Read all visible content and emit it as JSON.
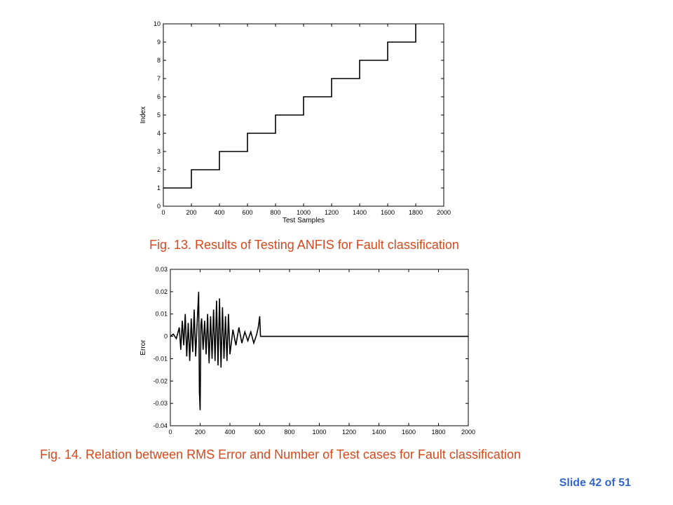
{
  "slide": {
    "label": "Slide 42 of 51"
  },
  "captions": {
    "fig13": "Fig. 13. Results of Testing ANFIS for Fault classification",
    "fig14": "Fig. 14. Relation between RMS Error and Number of Test cases for Fault classification"
  },
  "chart_data": [
    {
      "type": "line",
      "xlabel": "Test Samples",
      "ylabel": "Index",
      "xlim": [
        0,
        2000
      ],
      "ylim": [
        0,
        10
      ],
      "xticks": [
        0,
        200,
        400,
        600,
        800,
        1000,
        1200,
        1400,
        1600,
        1800,
        2000
      ],
      "yticks": [
        0,
        1,
        2,
        3,
        4,
        5,
        6,
        7,
        8,
        9,
        10
      ],
      "grid": false,
      "series": [
        {
          "x": [
            0,
            200,
            200,
            400,
            400,
            600,
            600,
            800,
            800,
            1000,
            1000,
            1200,
            1200,
            1400,
            1400,
            1600,
            1600,
            1800,
            1800
          ],
          "y": [
            1,
            1,
            2,
            2,
            3,
            3,
            4,
            4,
            5,
            5,
            6,
            6,
            7,
            7,
            8,
            8,
            9,
            9,
            10
          ]
        }
      ]
    },
    {
      "type": "line",
      "xlabel": "Test Samples",
      "ylabel": "Error",
      "xlim": [
        0,
        2000
      ],
      "ylim": [
        -0.04,
        0.03
      ],
      "xticks": [
        0,
        200,
        400,
        600,
        800,
        1000,
        1200,
        1400,
        1600,
        1800,
        2000
      ],
      "yticks": [
        0.03,
        0.02,
        0.01,
        0,
        -0.01,
        -0.02,
        -0.03,
        -0.04
      ],
      "ytick_labels": [
        "0.03",
        "0.02",
        "0.01",
        "0",
        "-0.01",
        "-0.02",
        "-0.03",
        "-0.04"
      ],
      "grid": false,
      "series": [
        {
          "x": [
            0,
            20,
            40,
            60,
            70,
            80,
            90,
            100,
            110,
            120,
            130,
            140,
            150,
            160,
            170,
            180,
            190,
            195,
            200,
            205,
            210,
            220,
            230,
            240,
            250,
            260,
            270,
            280,
            290,
            300,
            310,
            320,
            330,
            340,
            350,
            360,
            370,
            380,
            390,
            400,
            420,
            440,
            460,
            480,
            500,
            520,
            540,
            560,
            580,
            590,
            600,
            605,
            620,
            800,
            1000,
            1200,
            1400,
            1600,
            1800,
            2000
          ],
          "y": [
            0,
            0.001,
            -0.001,
            0.004,
            -0.006,
            0.007,
            -0.004,
            0.01,
            -0.009,
            0.006,
            -0.011,
            0.008,
            -0.007,
            0.012,
            -0.009,
            0.006,
            0.02,
            -0.025,
            -0.033,
            0.005,
            0.008,
            -0.006,
            0.007,
            -0.008,
            0.01,
            -0.012,
            0.009,
            -0.01,
            0.012,
            -0.011,
            0.016,
            -0.013,
            0.017,
            -0.014,
            0.013,
            -0.01,
            0.009,
            -0.011,
            0.01,
            -0.008,
            0.003,
            -0.004,
            0.004,
            -0.003,
            0.002,
            -0.002,
            0.002,
            -0.003,
            0.001,
            0.004,
            0.009,
            0,
            0,
            0,
            0,
            0,
            0,
            0,
            0,
            0
          ]
        }
      ]
    }
  ]
}
